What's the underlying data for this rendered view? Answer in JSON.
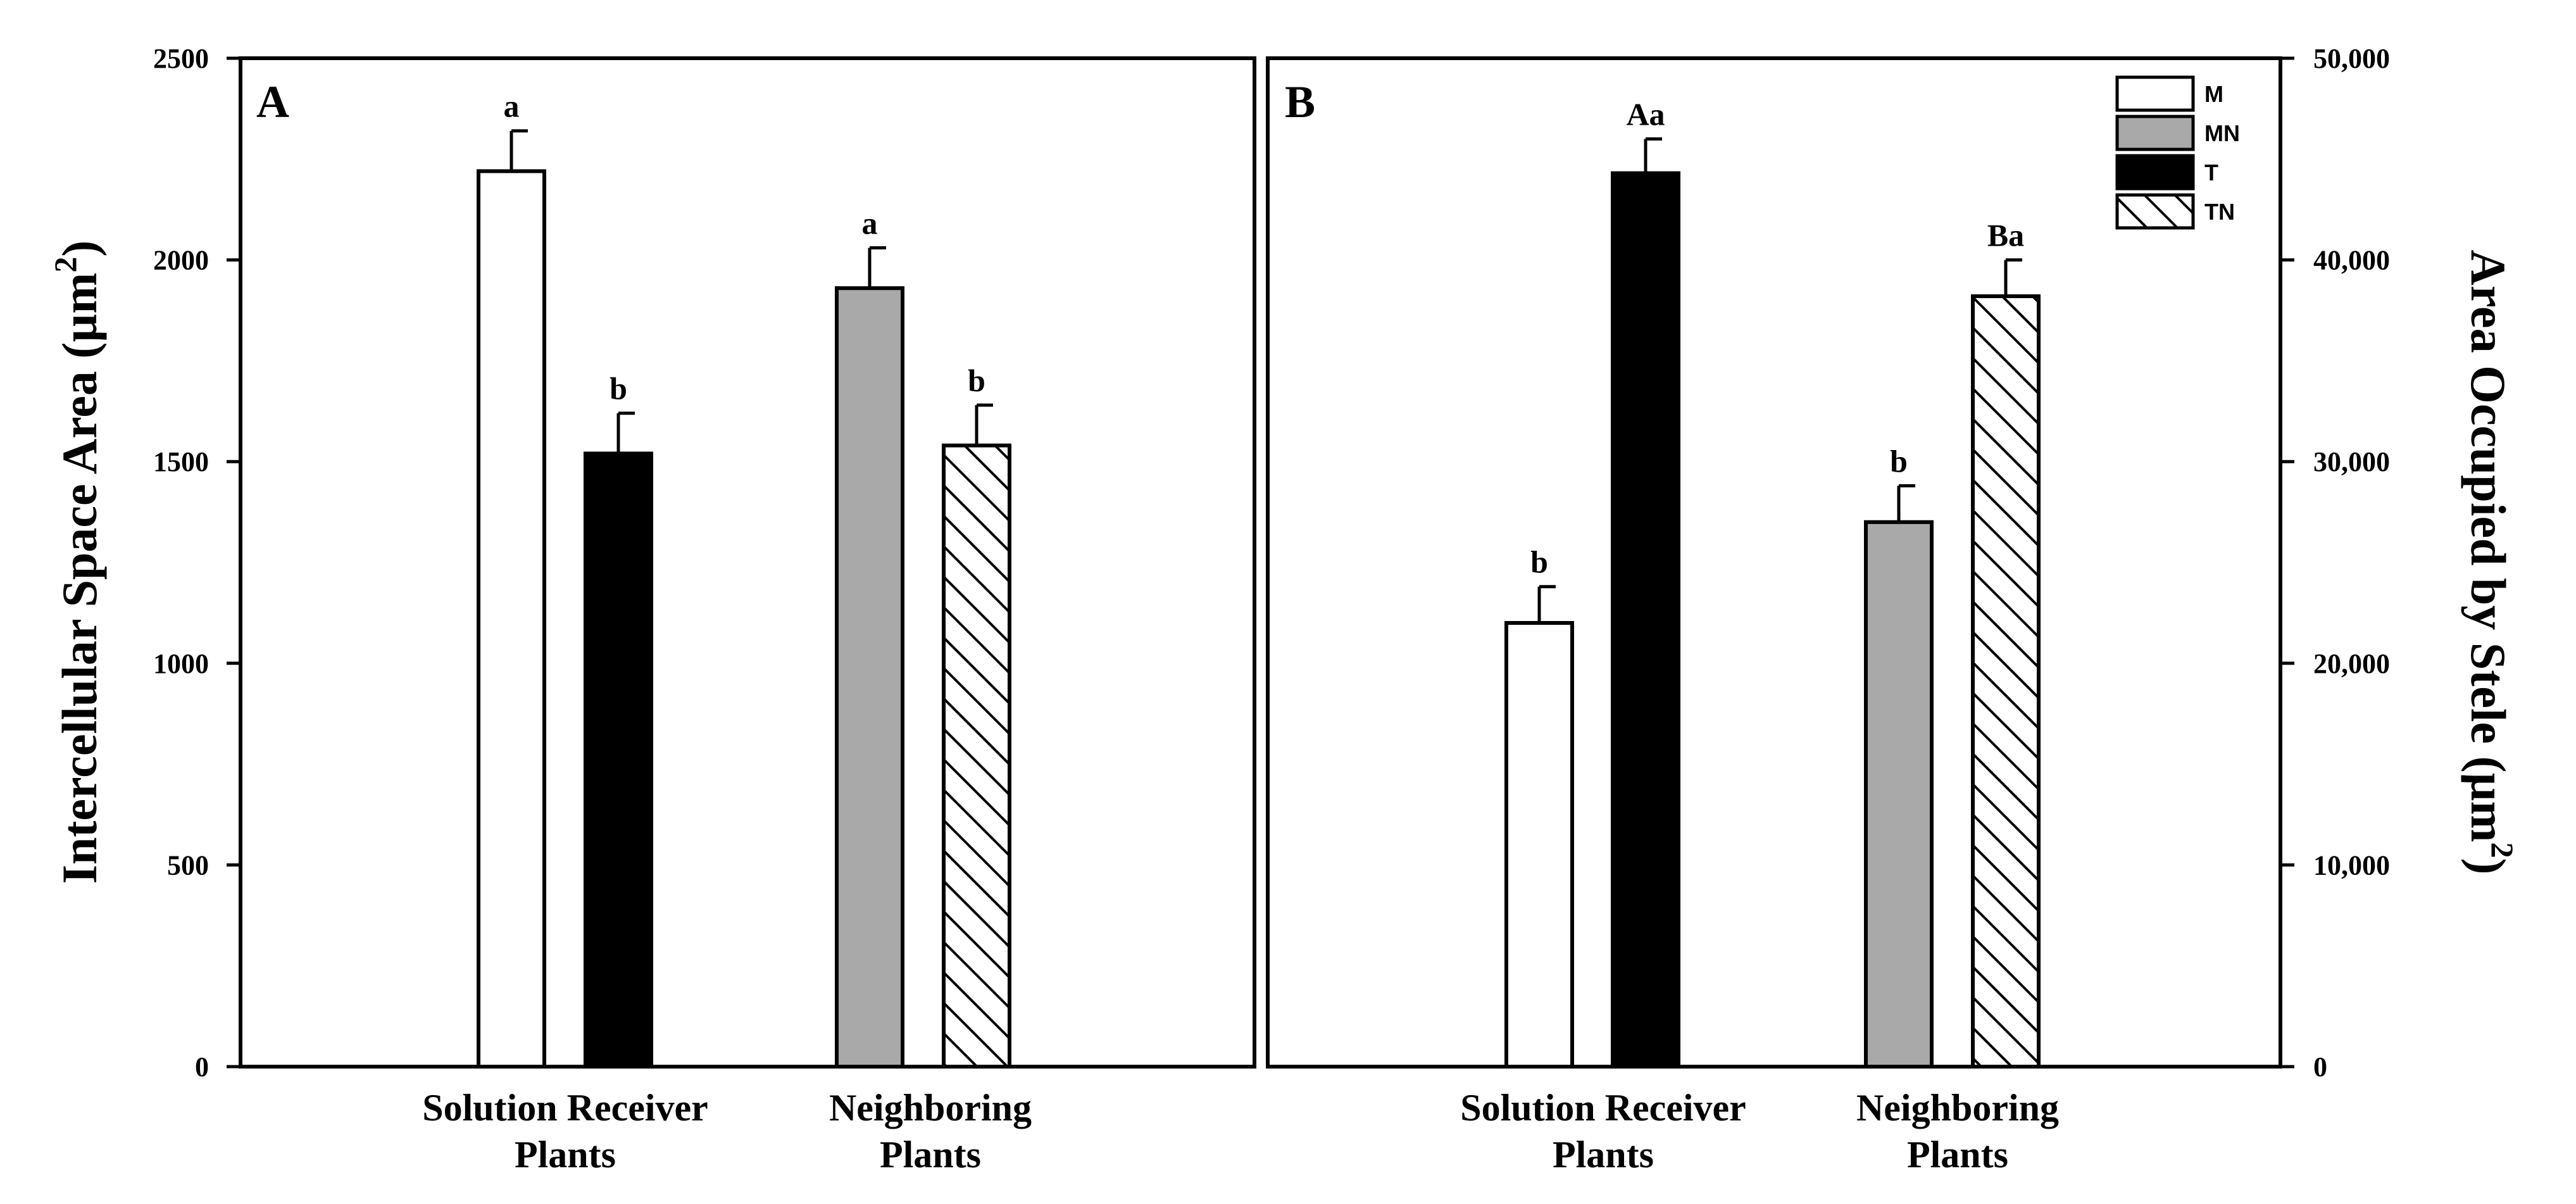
{
  "chart_data": [
    {
      "type": "bar",
      "panel_label": "A",
      "ylabel": "Intercellular Space Area (µm",
      "ylabel_sup": "2",
      "ylabel_close": ")",
      "ylim": [
        0,
        2500
      ],
      "yticks": [
        "0",
        "500",
        "1000",
        "1500",
        "2000",
        "2500"
      ],
      "categories": [
        "Solution Receiver Plants",
        "Neighboring Plants"
      ],
      "category_lines": [
        [
          "Solution Receiver",
          "Plants"
        ],
        [
          "Neighboring",
          "Plants"
        ]
      ],
      "bars": [
        {
          "series": "M",
          "category": "Solution Receiver Plants",
          "value": 2220,
          "error": 100,
          "label": "a"
        },
        {
          "series": "T",
          "category": "Solution Receiver Plants",
          "value": 1520,
          "error": 100,
          "label": "b"
        },
        {
          "series": "MN",
          "category": "Neighboring Plants",
          "value": 1930,
          "error": 100,
          "label": "a"
        },
        {
          "series": "TN",
          "category": "Neighboring Plants",
          "value": 1540,
          "error": 100,
          "label": "b"
        }
      ]
    },
    {
      "type": "bar",
      "panel_label": "B",
      "ylabel": "Area Occupied by Stele (µm",
      "ylabel_sup": "2",
      "ylabel_close": ")",
      "ylim": [
        0,
        50000
      ],
      "yticks": [
        "0",
        "10,000",
        "20,000",
        "30,000",
        "40,000",
        "50,000"
      ],
      "categories": [
        "Solution Receiver Plants",
        "Neighboring Plants"
      ],
      "category_lines": [
        [
          "Solution Receiver",
          "Plants"
        ],
        [
          "Neighboring",
          "Plants"
        ]
      ],
      "bars": [
        {
          "series": "M",
          "category": "Solution Receiver Plants",
          "value": 22000,
          "error": 1800,
          "label": "b"
        },
        {
          "series": "T",
          "category": "Solution Receiver Plants",
          "value": 44300,
          "error": 1700,
          "label": "Aa"
        },
        {
          "series": "MN",
          "category": "Neighboring Plants",
          "value": 27000,
          "error": 1800,
          "label": "b"
        },
        {
          "series": "TN",
          "category": "Neighboring Plants",
          "value": 38200,
          "error": 1800,
          "label": "Ba"
        }
      ]
    }
  ],
  "legend": [
    {
      "name": "M",
      "fill": "white"
    },
    {
      "name": "MN",
      "fill": "gray"
    },
    {
      "name": "T",
      "fill": "black"
    },
    {
      "name": "TN",
      "fill": "hatch"
    }
  ],
  "colors": {
    "gray": "#a9a9a9",
    "black": "#000000",
    "white": "#ffffff"
  }
}
